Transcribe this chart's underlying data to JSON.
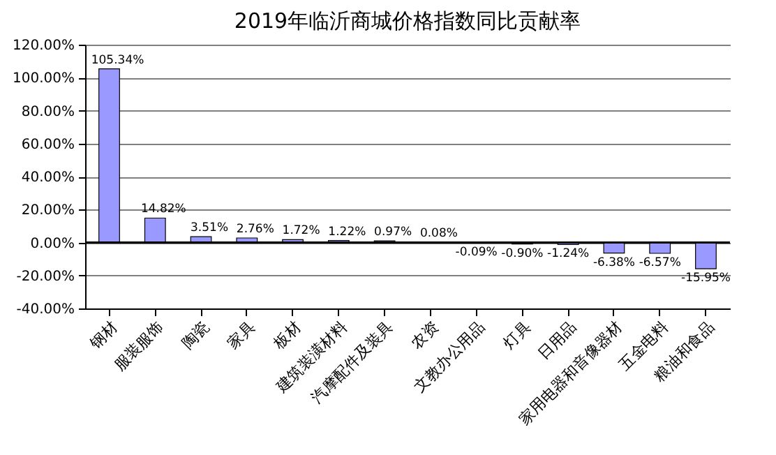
{
  "chart_data": {
    "type": "bar",
    "title": "2019年临沂商城价格指数同比贡献率",
    "categories": [
      "钢材",
      "服装服饰",
      "陶瓷",
      "家具",
      "板材",
      "建筑装潢材料",
      "汽摩配件及装具",
      "农资",
      "文教办公用品",
      "灯具",
      "日用品",
      "家用电器和音像器材",
      "五金电料",
      "粮油和食品"
    ],
    "values": [
      105.34,
      14.82,
      3.51,
      2.76,
      1.72,
      1.22,
      0.97,
      0.08,
      -0.09,
      -0.9,
      -1.24,
      -6.38,
      -6.57,
      -15.95
    ],
    "value_labels": [
      "105.34%",
      "14.82%",
      "3.51%",
      "2.76%",
      "1.72%",
      "1.22%",
      "0.97%",
      "0.08%",
      "-0.09%",
      "-0.90%",
      "-1.24%",
      "-6.38%",
      "-6.57%",
      "-15.95%"
    ],
    "color": "#9999ff",
    "ylim": [
      -40,
      120
    ],
    "yticks": [
      {
        "value": 120,
        "label": "120.00%"
      },
      {
        "value": 100,
        "label": "100.00%"
      },
      {
        "value": 80,
        "label": "80.00%"
      },
      {
        "value": 60,
        "label": "60.00%"
      },
      {
        "value": 40,
        "label": "40.00%"
      },
      {
        "value": 20,
        "label": "20.00%"
      },
      {
        "value": 0,
        "label": "0.00%"
      },
      {
        "value": -20,
        "label": "-20.00%"
      },
      {
        "value": -40,
        "label": "-40.00%"
      }
    ],
    "grid": "y",
    "legend": false
  }
}
